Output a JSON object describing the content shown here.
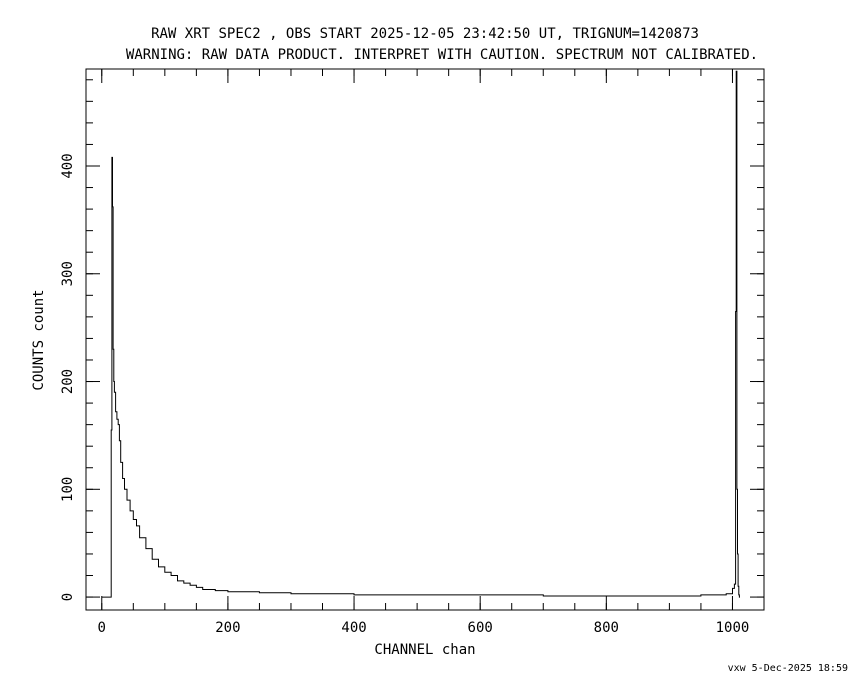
{
  "chart_data": {
    "type": "line",
    "title": "RAW XRT SPEC2 , OBS START 2025-12-05 23:42:50 UT, TRIGNUM=1420873",
    "subtitle": "WARNING: RAW DATA PRODUCT. INTERPRET WITH CAUTION. SPECTRUM NOT CALIBRATED.",
    "xlabel": "CHANNEL  chan",
    "ylabel": "COUNTS  count",
    "xlim": [
      -25,
      1050
    ],
    "ylim": [
      -12,
      490
    ],
    "x_ticks": [
      0,
      200,
      400,
      600,
      800,
      1000
    ],
    "y_ticks": [
      0,
      100,
      200,
      300,
      400
    ],
    "x_minor_step": 50,
    "y_minor_step": 20,
    "grid": false,
    "legend": "none",
    "line_color": "#000000",
    "step_style": "histogram",
    "series": [
      {
        "x": [
          0,
          14,
          15,
          16,
          17,
          18,
          19,
          20,
          22,
          24,
          26,
          28,
          30,
          33,
          36,
          40,
          45,
          50,
          55,
          60,
          70,
          80,
          90,
          100,
          110,
          120,
          130,
          140,
          150,
          160,
          170,
          180,
          200,
          220,
          250,
          270,
          300,
          350,
          400,
          450,
          500,
          550,
          600,
          650,
          700,
          750,
          800,
          850,
          900,
          950,
          990,
          1000,
          1003,
          1005,
          1006,
          1007,
          1008,
          1009,
          1010,
          1011,
          1012
        ],
        "values": [
          0,
          0,
          155,
          408,
          362,
          230,
          200,
          190,
          172,
          165,
          160,
          145,
          125,
          110,
          100,
          90,
          80,
          72,
          66,
          55,
          45,
          35,
          28,
          23,
          20,
          15,
          13,
          11,
          9,
          7,
          7,
          6,
          5,
          5,
          4,
          4,
          3,
          3,
          2,
          2,
          2,
          2,
          2,
          2,
          1,
          1,
          1,
          1,
          1,
          2,
          3,
          8,
          12,
          265,
          488,
          100,
          40,
          10,
          2,
          0,
          0
        ]
      }
    ]
  },
  "footer": "vxw  5-Dec-2025 18:59"
}
